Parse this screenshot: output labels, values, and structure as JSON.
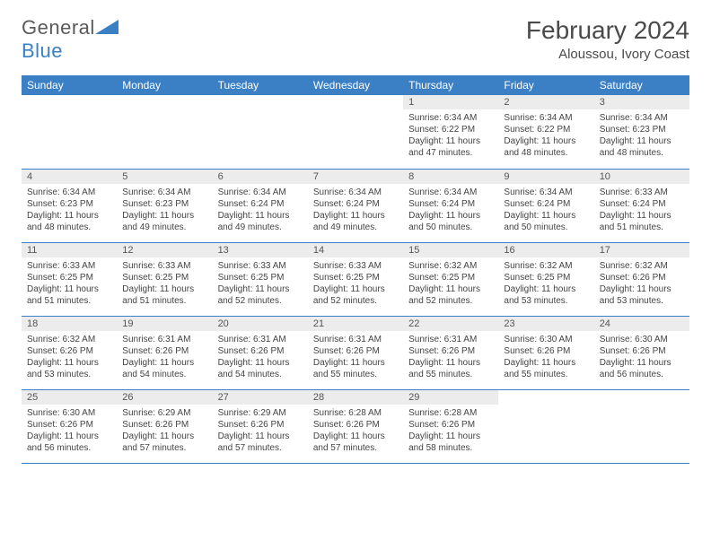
{
  "brand": {
    "first": "General",
    "second": "Blue"
  },
  "title": "February 2024",
  "location": "Aloussou, Ivory Coast",
  "colors": {
    "accent": "#3b7fc4",
    "daynum_bg": "#ececec",
    "text": "#444444"
  },
  "days_of_week": [
    "Sunday",
    "Monday",
    "Tuesday",
    "Wednesday",
    "Thursday",
    "Friday",
    "Saturday"
  ],
  "weeks": [
    [
      null,
      null,
      null,
      null,
      {
        "n": "1",
        "sunrise": "Sunrise: 6:34 AM",
        "sunset": "Sunset: 6:22 PM",
        "day1": "Daylight: 11 hours",
        "day2": "and 47 minutes."
      },
      {
        "n": "2",
        "sunrise": "Sunrise: 6:34 AM",
        "sunset": "Sunset: 6:22 PM",
        "day1": "Daylight: 11 hours",
        "day2": "and 48 minutes."
      },
      {
        "n": "3",
        "sunrise": "Sunrise: 6:34 AM",
        "sunset": "Sunset: 6:23 PM",
        "day1": "Daylight: 11 hours",
        "day2": "and 48 minutes."
      }
    ],
    [
      {
        "n": "4",
        "sunrise": "Sunrise: 6:34 AM",
        "sunset": "Sunset: 6:23 PM",
        "day1": "Daylight: 11 hours",
        "day2": "and 48 minutes."
      },
      {
        "n": "5",
        "sunrise": "Sunrise: 6:34 AM",
        "sunset": "Sunset: 6:23 PM",
        "day1": "Daylight: 11 hours",
        "day2": "and 49 minutes."
      },
      {
        "n": "6",
        "sunrise": "Sunrise: 6:34 AM",
        "sunset": "Sunset: 6:24 PM",
        "day1": "Daylight: 11 hours",
        "day2": "and 49 minutes."
      },
      {
        "n": "7",
        "sunrise": "Sunrise: 6:34 AM",
        "sunset": "Sunset: 6:24 PM",
        "day1": "Daylight: 11 hours",
        "day2": "and 49 minutes."
      },
      {
        "n": "8",
        "sunrise": "Sunrise: 6:34 AM",
        "sunset": "Sunset: 6:24 PM",
        "day1": "Daylight: 11 hours",
        "day2": "and 50 minutes."
      },
      {
        "n": "9",
        "sunrise": "Sunrise: 6:34 AM",
        "sunset": "Sunset: 6:24 PM",
        "day1": "Daylight: 11 hours",
        "day2": "and 50 minutes."
      },
      {
        "n": "10",
        "sunrise": "Sunrise: 6:33 AM",
        "sunset": "Sunset: 6:24 PM",
        "day1": "Daylight: 11 hours",
        "day2": "and 51 minutes."
      }
    ],
    [
      {
        "n": "11",
        "sunrise": "Sunrise: 6:33 AM",
        "sunset": "Sunset: 6:25 PM",
        "day1": "Daylight: 11 hours",
        "day2": "and 51 minutes."
      },
      {
        "n": "12",
        "sunrise": "Sunrise: 6:33 AM",
        "sunset": "Sunset: 6:25 PM",
        "day1": "Daylight: 11 hours",
        "day2": "and 51 minutes."
      },
      {
        "n": "13",
        "sunrise": "Sunrise: 6:33 AM",
        "sunset": "Sunset: 6:25 PM",
        "day1": "Daylight: 11 hours",
        "day2": "and 52 minutes."
      },
      {
        "n": "14",
        "sunrise": "Sunrise: 6:33 AM",
        "sunset": "Sunset: 6:25 PM",
        "day1": "Daylight: 11 hours",
        "day2": "and 52 minutes."
      },
      {
        "n": "15",
        "sunrise": "Sunrise: 6:32 AM",
        "sunset": "Sunset: 6:25 PM",
        "day1": "Daylight: 11 hours",
        "day2": "and 52 minutes."
      },
      {
        "n": "16",
        "sunrise": "Sunrise: 6:32 AM",
        "sunset": "Sunset: 6:25 PM",
        "day1": "Daylight: 11 hours",
        "day2": "and 53 minutes."
      },
      {
        "n": "17",
        "sunrise": "Sunrise: 6:32 AM",
        "sunset": "Sunset: 6:26 PM",
        "day1": "Daylight: 11 hours",
        "day2": "and 53 minutes."
      }
    ],
    [
      {
        "n": "18",
        "sunrise": "Sunrise: 6:32 AM",
        "sunset": "Sunset: 6:26 PM",
        "day1": "Daylight: 11 hours",
        "day2": "and 53 minutes."
      },
      {
        "n": "19",
        "sunrise": "Sunrise: 6:31 AM",
        "sunset": "Sunset: 6:26 PM",
        "day1": "Daylight: 11 hours",
        "day2": "and 54 minutes."
      },
      {
        "n": "20",
        "sunrise": "Sunrise: 6:31 AM",
        "sunset": "Sunset: 6:26 PM",
        "day1": "Daylight: 11 hours",
        "day2": "and 54 minutes."
      },
      {
        "n": "21",
        "sunrise": "Sunrise: 6:31 AM",
        "sunset": "Sunset: 6:26 PM",
        "day1": "Daylight: 11 hours",
        "day2": "and 55 minutes."
      },
      {
        "n": "22",
        "sunrise": "Sunrise: 6:31 AM",
        "sunset": "Sunset: 6:26 PM",
        "day1": "Daylight: 11 hours",
        "day2": "and 55 minutes."
      },
      {
        "n": "23",
        "sunrise": "Sunrise: 6:30 AM",
        "sunset": "Sunset: 6:26 PM",
        "day1": "Daylight: 11 hours",
        "day2": "and 55 minutes."
      },
      {
        "n": "24",
        "sunrise": "Sunrise: 6:30 AM",
        "sunset": "Sunset: 6:26 PM",
        "day1": "Daylight: 11 hours",
        "day2": "and 56 minutes."
      }
    ],
    [
      {
        "n": "25",
        "sunrise": "Sunrise: 6:30 AM",
        "sunset": "Sunset: 6:26 PM",
        "day1": "Daylight: 11 hours",
        "day2": "and 56 minutes."
      },
      {
        "n": "26",
        "sunrise": "Sunrise: 6:29 AM",
        "sunset": "Sunset: 6:26 PM",
        "day1": "Daylight: 11 hours",
        "day2": "and 57 minutes."
      },
      {
        "n": "27",
        "sunrise": "Sunrise: 6:29 AM",
        "sunset": "Sunset: 6:26 PM",
        "day1": "Daylight: 11 hours",
        "day2": "and 57 minutes."
      },
      {
        "n": "28",
        "sunrise": "Sunrise: 6:28 AM",
        "sunset": "Sunset: 6:26 PM",
        "day1": "Daylight: 11 hours",
        "day2": "and 57 minutes."
      },
      {
        "n": "29",
        "sunrise": "Sunrise: 6:28 AM",
        "sunset": "Sunset: 6:26 PM",
        "day1": "Daylight: 11 hours",
        "day2": "and 58 minutes."
      },
      null,
      null
    ]
  ]
}
